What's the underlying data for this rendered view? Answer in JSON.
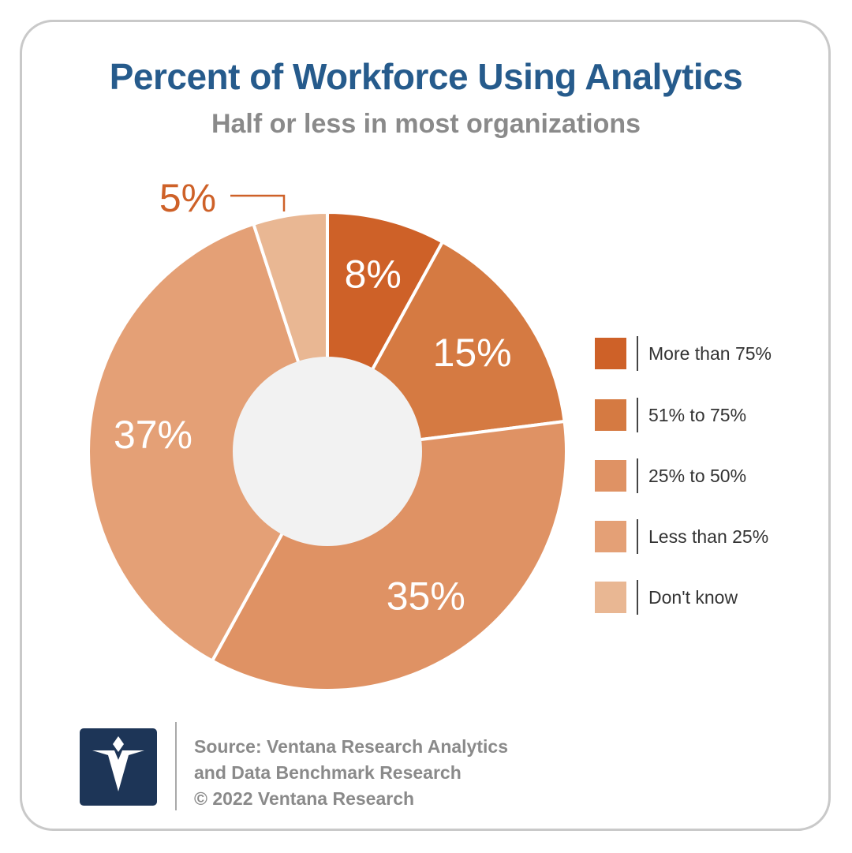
{
  "chart_data": {
    "type": "pie",
    "title": "Percent of Workforce Using Analytics",
    "subtitle": "Half or less in most organizations",
    "categories": [
      "More than 75%",
      "51% to 75%",
      "25% to 50%",
      "Less than 25%",
      "Don't know"
    ],
    "values": [
      8,
      15,
      35,
      37,
      5
    ],
    "value_labels": [
      "8%",
      "15%",
      "35%",
      "37%",
      "5%"
    ],
    "colors": [
      "#ce6128",
      "#d57a42",
      "#df9264",
      "#e4a076",
      "#e9b793"
    ],
    "donut": true,
    "legend_position": "right"
  },
  "legend": [
    {
      "label": "More than 75%",
      "color": "#ce6128"
    },
    {
      "label": "51% to 75%",
      "color": "#d57a42"
    },
    {
      "label": "25% to 50%",
      "color": "#df9264"
    },
    {
      "label": "Less than 25%",
      "color": "#e4a076"
    },
    {
      "label": "Don't know",
      "color": "#e9b793"
    }
  ],
  "footer": {
    "source_line1": "Source: Ventana Research Analytics",
    "source_line2": "and Data Benchmark Research",
    "copyright": "© 2022 Ventana Research",
    "logo_icon": "ventana-v-logo-icon"
  }
}
